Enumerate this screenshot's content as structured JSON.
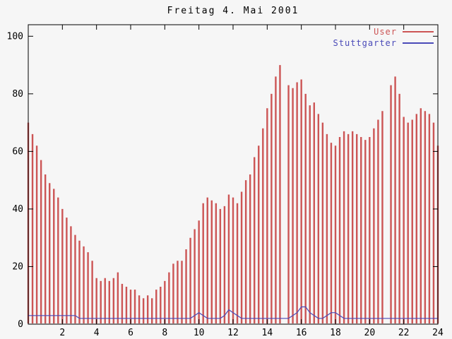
{
  "chart_data": {
    "type": "bar",
    "title": "Freitag 4. Mai 2001",
    "xlabel": "",
    "ylabel": "",
    "xlim": [
      0,
      24
    ],
    "ylim": [
      0,
      104
    ],
    "x_ticks": [
      2,
      4,
      6,
      8,
      10,
      12,
      14,
      16,
      18,
      20,
      22,
      24
    ],
    "y_ticks": [
      0,
      20,
      40,
      60,
      80,
      100
    ],
    "x_start": 0,
    "x_step": 0.25,
    "grid": false,
    "legend_position": "top-right",
    "colors": {
      "axis": "#000000",
      "background": "#f6f6f6",
      "user": "#cc5555",
      "stuttgarter": "#4a4ab8"
    },
    "series": [
      {
        "name": "User",
        "style": "impulses",
        "color": "#cc5555",
        "values": [
          70,
          66,
          62,
          57,
          52,
          49,
          47,
          44,
          40,
          37,
          34,
          31,
          29,
          27,
          25,
          22,
          16,
          15,
          16,
          15,
          16,
          18,
          14,
          13,
          12,
          12,
          10,
          9,
          10,
          9,
          12,
          13,
          15,
          18,
          21,
          22,
          22,
          26,
          30,
          33,
          36,
          42,
          44,
          43,
          42,
          40,
          41,
          45,
          44,
          42,
          46,
          50,
          52,
          58,
          62,
          68,
          75,
          80,
          86,
          90,
          null,
          83,
          82,
          84,
          85,
          80,
          76,
          77,
          73,
          70,
          66,
          63,
          62,
          65,
          67,
          66,
          67,
          66,
          65,
          64,
          65,
          68,
          71,
          74,
          null,
          83,
          86,
          80,
          72,
          70,
          71,
          73,
          75,
          74,
          73,
          70,
          62
        ]
      },
      {
        "name": "Stuttgarter",
        "style": "line",
        "color": "#4a4ab8",
        "values": [
          3,
          3,
          3,
          3,
          3,
          3,
          3,
          3,
          3,
          3,
          3,
          3,
          2,
          2,
          2,
          2,
          2,
          2,
          2,
          2,
          2,
          2,
          2,
          2,
          2,
          2,
          2,
          2,
          2,
          2,
          2,
          2,
          2,
          2,
          2,
          2,
          2,
          2,
          2,
          3,
          4,
          3,
          2,
          2,
          2,
          2,
          3,
          5,
          4,
          3,
          2,
          2,
          2,
          2,
          2,
          2,
          2,
          2,
          2,
          2,
          2,
          2,
          3,
          4,
          6,
          6,
          4,
          3,
          2,
          2,
          3,
          4,
          4,
          3,
          2,
          2,
          2,
          2,
          2,
          2,
          2,
          2,
          2,
          2,
          2,
          2,
          2,
          2,
          2,
          2,
          2,
          2,
          2,
          2,
          2,
          2,
          2
        ]
      }
    ]
  }
}
